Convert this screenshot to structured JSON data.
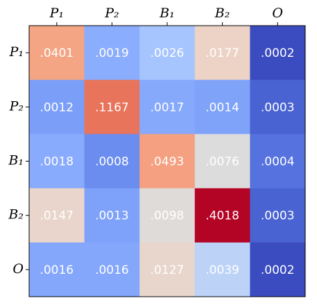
{
  "chart_data": {
    "type": "heatmap",
    "x_categories": [
      "P₁",
      "P₂",
      "B₁",
      "B₂",
      "O"
    ],
    "y_categories": [
      "P₁",
      "P₂",
      "B₁",
      "B₂",
      "O"
    ],
    "values": [
      [
        0.0401,
        0.0019,
        0.0026,
        0.0177,
        0.0002
      ],
      [
        0.0012,
        0.1167,
        0.0017,
        0.0014,
        0.0003
      ],
      [
        0.0018,
        0.0008,
        0.0493,
        0.0076,
        0.0004
      ],
      [
        0.0147,
        0.0013,
        0.0098,
        0.4018,
        0.0003
      ],
      [
        0.0016,
        0.0016,
        0.0127,
        0.0039,
        0.0002
      ]
    ],
    "value_labels": [
      [
        ".0401",
        ".0019",
        ".0026",
        ".0177",
        ".0002"
      ],
      [
        ".0012",
        ".1167",
        ".0017",
        ".0014",
        ".0003"
      ],
      [
        ".0018",
        ".0008",
        ".0493",
        ".0076",
        ".0004"
      ],
      [
        ".0147",
        ".0013",
        ".0098",
        ".4018",
        ".0003"
      ],
      [
        ".0016",
        ".0016",
        ".0127",
        ".0039",
        ".0002"
      ]
    ],
    "colors": [
      [
        "#f4a584",
        "#8badfd",
        "#a6c4fe",
        "#ecd3c5",
        "#3b4cc0"
      ],
      [
        "#7b9ff9",
        "#e7745b",
        "#86a9fc",
        "#80a3fa",
        "#4a63d3"
      ],
      [
        "#88abfd",
        "#6b8df0",
        "#f5a081",
        "#dddcdc",
        "#5572df"
      ],
      [
        "#e9d5cb",
        "#7ea1fa",
        "#dfdbd9",
        "#b40426",
        "#4a63d3"
      ],
      [
        "#84a7fc",
        "#84a7fc",
        "#e8d6cc",
        "#bcd2f7",
        "#3b4cc0"
      ]
    ]
  }
}
